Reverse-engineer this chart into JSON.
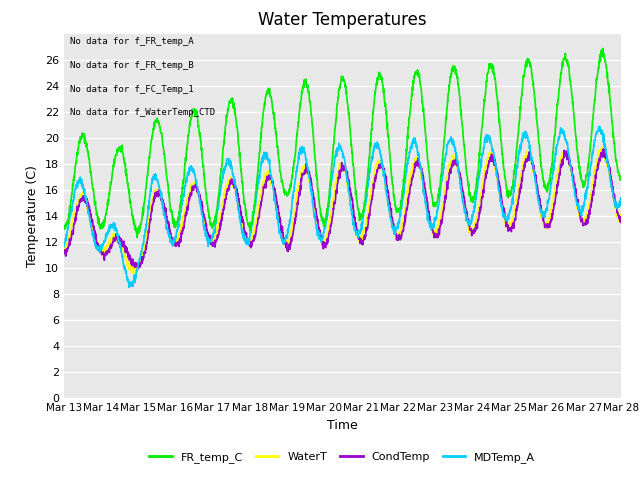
{
  "title": "Water Temperatures",
  "xlabel": "Time",
  "ylabel": "Temperature (C)",
  "ylim": [
    0,
    28
  ],
  "yticks": [
    0,
    2,
    4,
    6,
    8,
    10,
    12,
    14,
    16,
    18,
    20,
    22,
    24,
    26
  ],
  "bg_color": "#e8e8e8",
  "grid_color": "white",
  "series": {
    "FR_temp_C": {
      "color": "#00ee00",
      "linewidth": 1.2
    },
    "WaterT": {
      "color": "#ffff00",
      "linewidth": 1.2
    },
    "CondTemp": {
      "color": "#9900cc",
      "linewidth": 1.2
    },
    "MDTemp_A": {
      "color": "#00ccff",
      "linewidth": 1.2
    }
  },
  "legend_labels": [
    "FR_temp_C",
    "WaterT",
    "CondTemp",
    "MDTemp_A"
  ],
  "legend_colors": [
    "#00ee00",
    "#ffff00",
    "#9900cc",
    "#00ccff"
  ],
  "no_data_texts": [
    "No data for f_FR_temp_A",
    "No data for f_FR_temp_B",
    "No data for f_FC_Temp_1",
    "No data for f_WaterTemp_CTD"
  ],
  "xticklabels": [
    "Mar 13",
    "Mar 14",
    "Mar 15",
    "Mar 16",
    "Mar 17",
    "Mar 18",
    "Mar 19",
    "Mar 20",
    "Mar 21",
    "Mar 22",
    "Mar 23",
    "Mar 24",
    "Mar 25",
    "Mar 26",
    "Mar 27",
    "Mar 28"
  ],
  "figsize": [
    6.4,
    4.8
  ],
  "dpi": 100
}
